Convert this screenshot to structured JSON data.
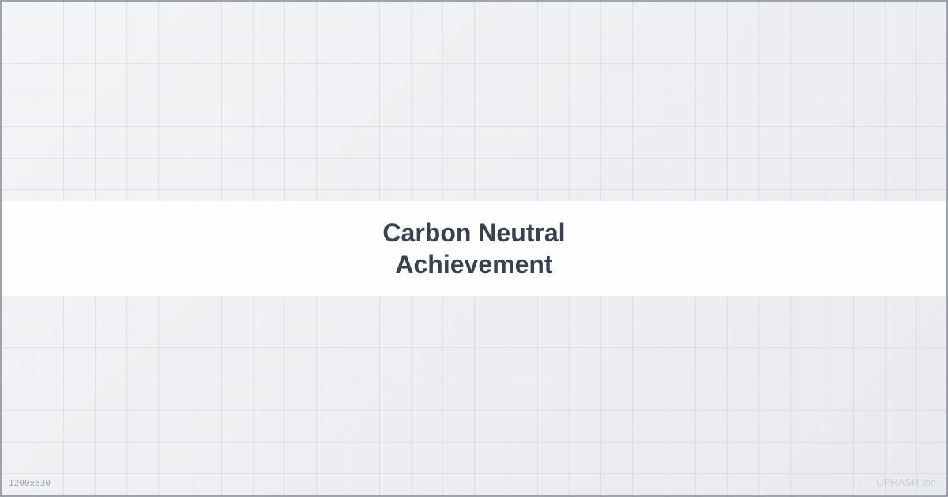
{
  "banner": {
    "title_line1": "Carbon Neutral",
    "title_line2": "Achievement"
  },
  "footer": {
    "dimensions": "1200x630",
    "brand": "UPHASH Inc."
  },
  "colors": {
    "title": "#374151",
    "border": "#9ca3af",
    "background": "#eeeff2",
    "band": "#ffffff"
  }
}
